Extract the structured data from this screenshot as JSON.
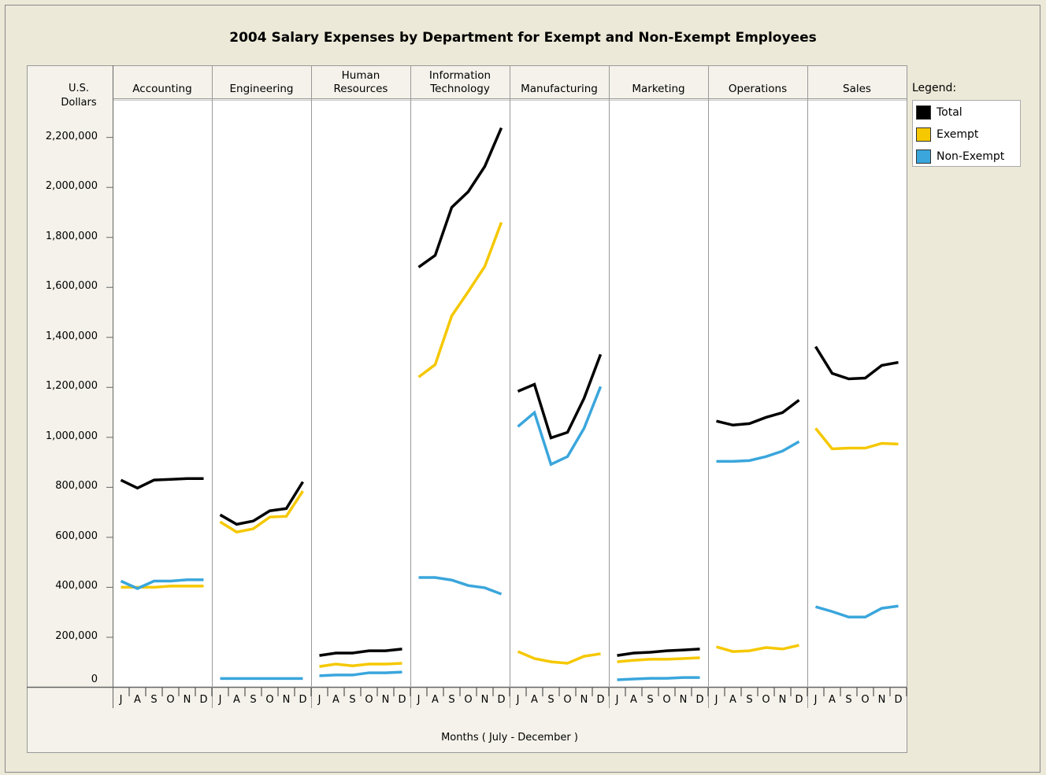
{
  "chart_data": {
    "type": "line",
    "title": "2004 Salary Expenses by Department for Exempt and Non-Exempt Employees",
    "y_label": "U.S. Dollars",
    "x_label": "Months ( July - December )",
    "legend_title": "Legend:",
    "panels": [
      "Accounting",
      "Engineering",
      "Human Resources",
      "Information Technology",
      "Manufacturing",
      "Marketing",
      "Operations",
      "Sales"
    ],
    "categories": [
      "J",
      "A",
      "S",
      "O",
      "N",
      "D"
    ],
    "ylim": [
      0,
      2350000
    ],
    "yticks": [
      0,
      {
        "value": 200000,
        "label": "200,000"
      },
      {
        "value": 400000,
        "label": "400,000"
      },
      {
        "value": 600000,
        "label": "600,000"
      },
      {
        "value": 800000,
        "label": "800,000"
      },
      {
        "value": 1000000,
        "label": "1,000,000"
      },
      {
        "value": 1200000,
        "label": "1,200,000"
      },
      {
        "value": 1400000,
        "label": "1,400,000"
      },
      {
        "value": 1600000,
        "label": "1,600,000"
      },
      {
        "value": 1800000,
        "label": "1,800,000"
      },
      {
        "value": 2000000,
        "label": "2,000,000"
      },
      {
        "value": 2200000,
        "label": "2,200,000"
      }
    ],
    "series": [
      {
        "name": "Total",
        "color": "#000000",
        "values": [
          [
            829000,
            797000,
            829000,
            832000,
            835000,
            835000
          ],
          [
            690000,
            652000,
            665000,
            706000,
            715000,
            822000
          ],
          [
            127000,
            137000,
            137000,
            146000,
            146000,
            153000
          ],
          [
            1681000,
            1728000,
            1920000,
            1983000,
            2084000,
            2238000
          ],
          [
            1184000,
            1212000,
            998000,
            1020000,
            1156000,
            1332000
          ],
          [
            127000,
            137000,
            140000,
            146000,
            149000,
            153000
          ],
          [
            1065000,
            1049000,
            1055000,
            1080000,
            1099000,
            1149000
          ],
          [
            1363000,
            1256000,
            1234000,
            1237000,
            1288000,
            1300000
          ]
        ]
      },
      {
        "name": "Exempt",
        "color": "#f5c800",
        "values": [
          [
            400000,
            400000,
            400000,
            405000,
            405000,
            405000
          ],
          [
            662000,
            621000,
            634000,
            681000,
            684000,
            785000
          ],
          [
            83000,
            93000,
            86000,
            93000,
            93000,
            96000
          ],
          [
            1241000,
            1291000,
            1486000,
            1583000,
            1684000,
            1860000
          ],
          [
            143000,
            115000,
            102000,
            96000,
            124000,
            134000
          ],
          [
            102000,
            108000,
            112000,
            112000,
            115000,
            118000
          ],
          [
            162000,
            143000,
            146000,
            159000,
            153000,
            168000
          ],
          [
            1036000,
            954000,
            957000,
            957000,
            976000,
            973000
          ]
        ]
      },
      {
        "name": "Non-Exempt",
        "color": "#3aa6dc",
        "values": [
          [
            425000,
            395000,
            425000,
            425000,
            430000,
            430000
          ],
          [
            35000,
            35000,
            35000,
            35000,
            35000,
            35000
          ],
          [
            46000,
            49000,
            49000,
            58000,
            58000,
            61000
          ],
          [
            439000,
            439000,
            429000,
            407000,
            398000,
            373000
          ],
          [
            1043000,
            1099000,
            892000,
            923000,
            1036000,
            1203000
          ],
          [
            30000,
            33000,
            36000,
            36000,
            39000,
            39000
          ],
          [
            904000,
            904000,
            907000,
            923000,
            945000,
            983000
          ],
          [
            322000,
            303000,
            281000,
            281000,
            316000,
            325000
          ]
        ]
      }
    ]
  }
}
